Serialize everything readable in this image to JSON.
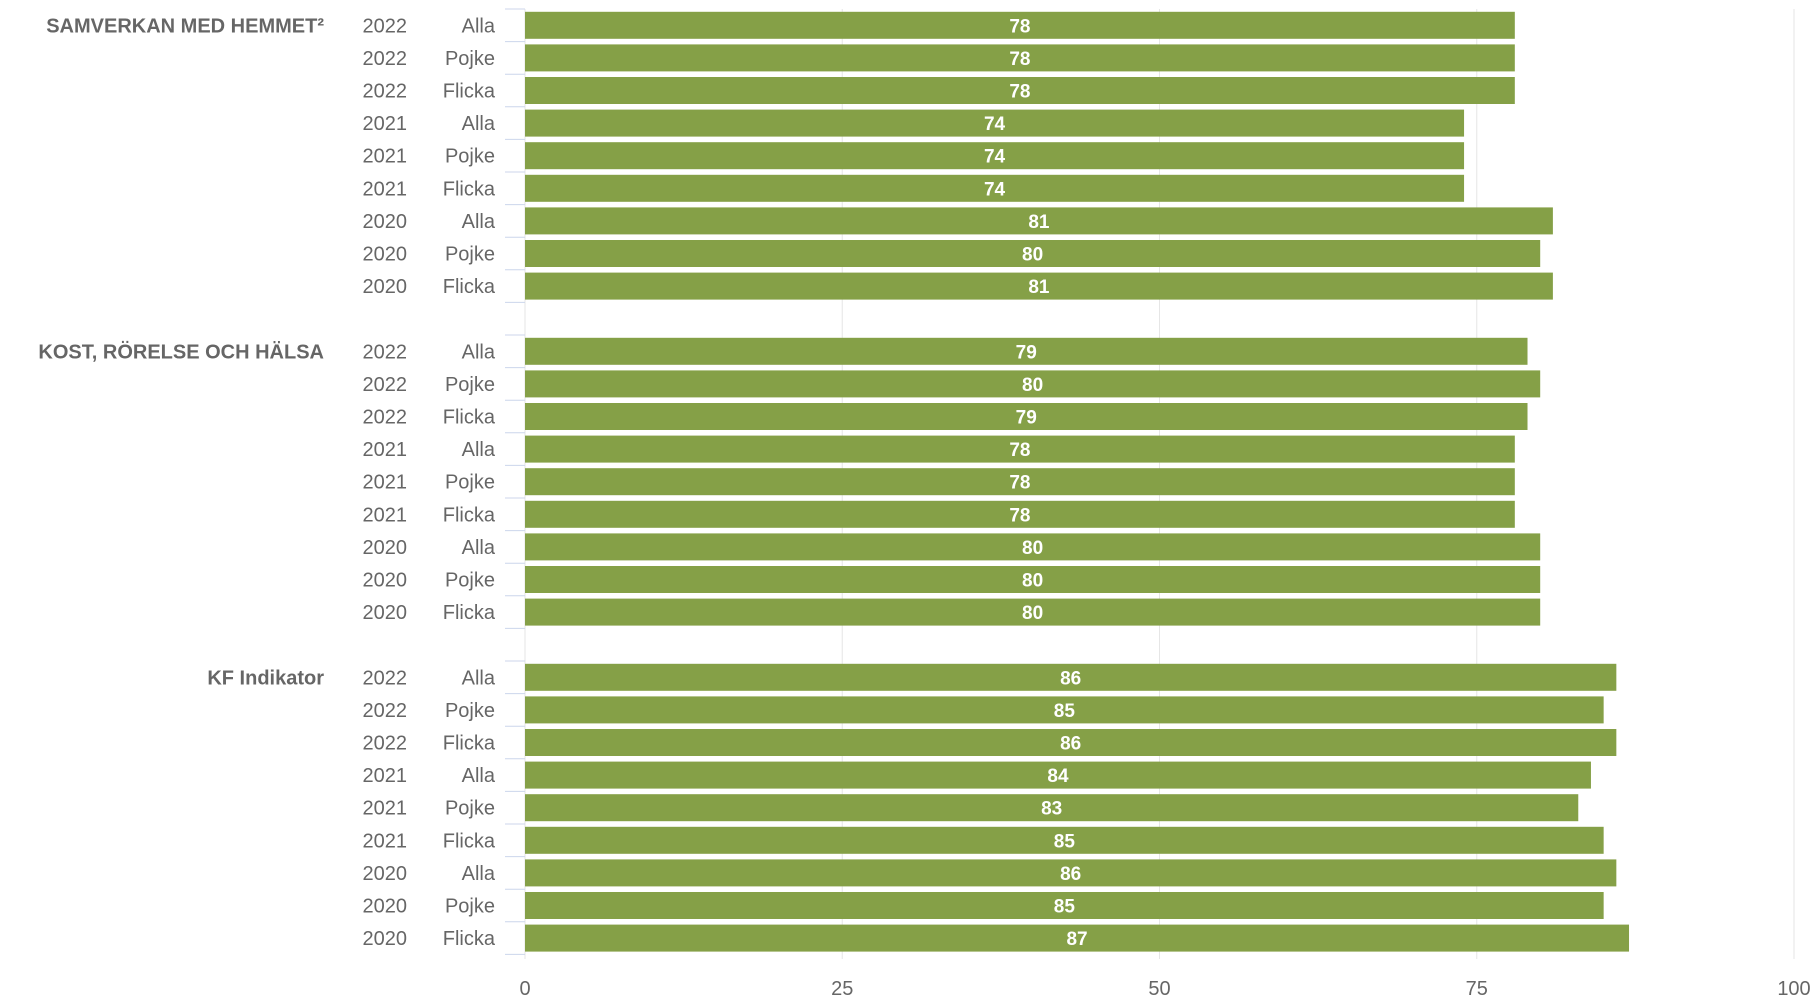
{
  "chart_data": {
    "type": "bar",
    "orientation": "horizontal",
    "title": "",
    "xlabel": "",
    "ylabel": "",
    "xlim": [
      0,
      100
    ],
    "x_ticks": [
      0,
      25,
      50,
      75,
      100
    ],
    "grid": true,
    "bar_color": "#85a047",
    "groups": [
      {
        "label": "SAMVERKAN MED HEMMET²",
        "rows": [
          {
            "year": "2022",
            "gender": "Alla",
            "value": 78
          },
          {
            "year": "2022",
            "gender": "Pojke",
            "value": 78
          },
          {
            "year": "2022",
            "gender": "Flicka",
            "value": 78
          },
          {
            "year": "2021",
            "gender": "Alla",
            "value": 74
          },
          {
            "year": "2021",
            "gender": "Pojke",
            "value": 74
          },
          {
            "year": "2021",
            "gender": "Flicka",
            "value": 74
          },
          {
            "year": "2020",
            "gender": "Alla",
            "value": 81
          },
          {
            "year": "2020",
            "gender": "Pojke",
            "value": 80
          },
          {
            "year": "2020",
            "gender": "Flicka",
            "value": 81
          }
        ]
      },
      {
        "label": "KOST, RÖRELSE OCH HÄLSA",
        "rows": [
          {
            "year": "2022",
            "gender": "Alla",
            "value": 79
          },
          {
            "year": "2022",
            "gender": "Pojke",
            "value": 80
          },
          {
            "year": "2022",
            "gender": "Flicka",
            "value": 79
          },
          {
            "year": "2021",
            "gender": "Alla",
            "value": 78
          },
          {
            "year": "2021",
            "gender": "Pojke",
            "value": 78
          },
          {
            "year": "2021",
            "gender": "Flicka",
            "value": 78
          },
          {
            "year": "2020",
            "gender": "Alla",
            "value": 80
          },
          {
            "year": "2020",
            "gender": "Pojke",
            "value": 80
          },
          {
            "year": "2020",
            "gender": "Flicka",
            "value": 80
          }
        ]
      },
      {
        "label": "KF Indikator",
        "rows": [
          {
            "year": "2022",
            "gender": "Alla",
            "value": 86
          },
          {
            "year": "2022",
            "gender": "Pojke",
            "value": 85
          },
          {
            "year": "2022",
            "gender": "Flicka",
            "value": 86
          },
          {
            "year": "2021",
            "gender": "Alla",
            "value": 84
          },
          {
            "year": "2021",
            "gender": "Pojke",
            "value": 83
          },
          {
            "year": "2021",
            "gender": "Flicka",
            "value": 85
          },
          {
            "year": "2020",
            "gender": "Alla",
            "value": 86
          },
          {
            "year": "2020",
            "gender": "Pojke",
            "value": 85
          },
          {
            "year": "2020",
            "gender": "Flicka",
            "value": 87
          }
        ]
      }
    ]
  }
}
